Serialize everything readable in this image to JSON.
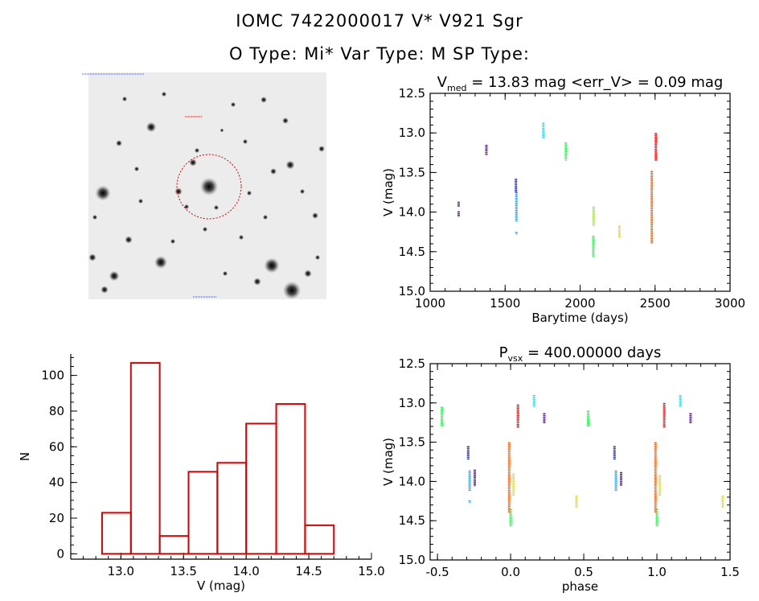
{
  "header": {
    "title": "IOMC 7422000017    V* V921 Sgr",
    "subtitle": "O Type: Mi*  Var Type: M  SP Type:"
  },
  "colors": {
    "purple": "#5b1a9e",
    "blue": "#2233cc",
    "cyan": "#22ddee",
    "skyblue": "#22aaee",
    "green": "#33ee55",
    "lime": "#99ee22",
    "yellow": "#dddd22",
    "orange": "#ee6611",
    "red": "#ee1111",
    "hist": "#dd0000"
  },
  "chart_data": [
    {
      "type": "scatter",
      "id": "lightcurve",
      "title_parts": {
        "v": "V",
        "sub": "med",
        "rest": " = 13.83 mag <err_V> = 0.09 mag"
      },
      "xlabel": "Barytime (days)",
      "ylabel": "V (mag)",
      "xlim": [
        1000,
        3000
      ],
      "ylim": [
        15.0,
        12.5
      ],
      "xticks": [
        1000,
        1500,
        2000,
        2500,
        3000
      ],
      "yticks": [
        "12.5",
        "13.0",
        "13.5",
        "14.0",
        "14.5",
        "15.0"
      ],
      "groups": [
        {
          "x": 1190,
          "color": "purple",
          "segments": [
            [
              13.87,
              13.93
            ],
            [
              13.99,
              14.06
            ]
          ]
        },
        {
          "x": 1375,
          "color": "purple",
          "segments": [
            [
              13.15,
              13.28
            ]
          ]
        },
        {
          "x": 1572,
          "color": "blue",
          "segments": [
            [
              13.58,
              13.75
            ]
          ]
        },
        {
          "x": 1575,
          "color": "skyblue",
          "segments": [
            [
              13.75,
              14.12
            ],
            [
              14.25,
              14.28
            ]
          ]
        },
        {
          "x": 1755,
          "color": "cyan",
          "segments": [
            [
              12.87,
              13.07
            ]
          ]
        },
        {
          "x": 1905,
          "color": "green",
          "segments": [
            [
              13.12,
              13.35
            ]
          ]
        },
        {
          "x": 2090,
          "color": "lime",
          "segments": [
            [
              13.93,
              14.18
            ]
          ]
        },
        {
          "x": 2088,
          "color": "green",
          "segments": [
            [
              14.3,
              14.57
            ]
          ]
        },
        {
          "x": 2262,
          "color": "yellow",
          "segments": [
            [
              14.17,
              14.33
            ]
          ]
        },
        {
          "x": 2478,
          "color": "orange",
          "segments": [
            [
              13.48,
              14.4
            ]
          ]
        },
        {
          "x": 2505,
          "color": "red",
          "segments": [
            [
              13.0,
              13.35
            ]
          ]
        }
      ]
    },
    {
      "type": "bar",
      "id": "histogram",
      "xlabel": "V (mag)",
      "ylabel": "N",
      "xlim": [
        12.6,
        15.0
      ],
      "ylim": [
        -3,
        112
      ],
      "xticks": [
        "13.0",
        "13.5",
        "14.0",
        "14.5",
        "15.0"
      ],
      "yticks": [
        "0",
        "20",
        "40",
        "60",
        "80",
        "100"
      ],
      "bin_edges": [
        12.85,
        13.08,
        13.31,
        13.54,
        13.77,
        14.0,
        14.24,
        14.47
      ],
      "values": [
        23,
        107,
        10,
        46,
        51,
        73,
        84,
        16
      ]
    },
    {
      "type": "scatter",
      "id": "phased",
      "title_parts": {
        "v": "P",
        "sub": "vsx",
        "rest": " = 400.00000 days"
      },
      "xlabel": "phase",
      "ylabel": "V (mag)",
      "xlim": [
        -0.55,
        1.5
      ],
      "ylim": [
        15.0,
        12.5
      ],
      "xticks": [
        "-0.5",
        "0.0",
        "0.5",
        "1.0",
        "1.5"
      ],
      "yticks": [
        "12.5",
        "13.0",
        "13.5",
        "14.0",
        "14.5",
        "15.0"
      ],
      "groups": [
        {
          "x": -0.47,
          "color": "green",
          "segments": [
            [
              13.05,
              13.3
            ]
          ]
        },
        {
          "x": -0.29,
          "color": "blue",
          "segments": [
            [
              13.55,
              13.72
            ]
          ]
        },
        {
          "x": -0.28,
          "color": "skyblue",
          "segments": [
            [
              13.86,
              14.12
            ],
            [
              14.24,
              14.27
            ]
          ]
        },
        {
          "x": -0.245,
          "color": "purple",
          "segments": [
            [
              13.85,
              14.06
            ]
          ]
        },
        {
          "x": -0.01,
          "color": "orange",
          "segments": [
            [
              13.5,
              14.4
            ]
          ]
        },
        {
          "x": 0.0,
          "color": "green",
          "segments": [
            [
              14.35,
              14.57
            ]
          ]
        },
        {
          "x": 0.02,
          "color": "yellow",
          "segments": [
            [
              13.9,
              14.18
            ]
          ]
        },
        {
          "x": 0.05,
          "color": "red",
          "segments": [
            [
              13.02,
              13.32
            ]
          ]
        },
        {
          "x": 0.16,
          "color": "cyan",
          "segments": [
            [
              12.9,
              13.05
            ]
          ]
        },
        {
          "x": 0.23,
          "color": "purple",
          "segments": [
            [
              13.13,
              13.26
            ]
          ]
        },
        {
          "x": 0.45,
          "color": "yellow",
          "segments": [
            [
              14.18,
              14.33
            ]
          ]
        },
        {
          "x": 0.53,
          "color": "green",
          "segments": [
            [
              13.1,
              13.3
            ]
          ]
        },
        {
          "x": 0.71,
          "color": "blue",
          "segments": [
            [
              13.55,
              13.72
            ]
          ]
        },
        {
          "x": 0.72,
          "color": "skyblue",
          "segments": [
            [
              13.86,
              14.12
            ]
          ]
        },
        {
          "x": 0.755,
          "color": "purple",
          "segments": [
            [
              13.88,
              14.06
            ]
          ]
        },
        {
          "x": 0.99,
          "color": "orange",
          "segments": [
            [
              13.5,
              14.4
            ]
          ]
        },
        {
          "x": 1.0,
          "color": "green",
          "segments": [
            [
              14.35,
              14.57
            ]
          ]
        },
        {
          "x": 1.02,
          "color": "yellow",
          "segments": [
            [
              13.92,
              14.18
            ]
          ]
        },
        {
          "x": 1.05,
          "color": "red",
          "segments": [
            [
              13.0,
              13.32
            ]
          ]
        },
        {
          "x": 1.16,
          "color": "cyan",
          "segments": [
            [
              12.9,
              13.05
            ]
          ]
        },
        {
          "x": 1.23,
          "color": "purple",
          "segments": [
            [
              13.13,
              13.26
            ]
          ]
        },
        {
          "x": 1.45,
          "color": "yellow",
          "segments": [
            [
              14.18,
              14.33
            ]
          ]
        }
      ]
    }
  ]
}
